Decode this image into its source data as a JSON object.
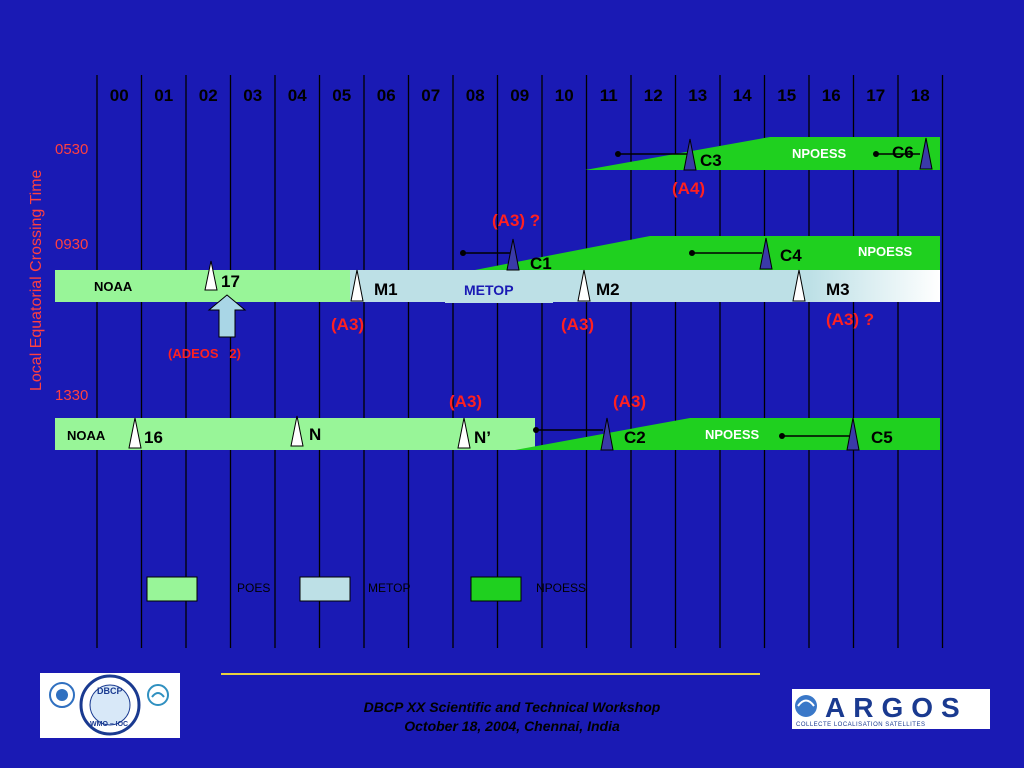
{
  "hours": [
    "00",
    "01",
    "02",
    "03",
    "04",
    "05",
    "06",
    "07",
    "08",
    "09",
    "10",
    "11",
    "12",
    "13",
    "14",
    "15",
    "16",
    "17",
    "18"
  ],
  "y_axis_label": "Local Equatorial Crossing Time",
  "rows": {
    "r0530": "0530",
    "r0930": "0930",
    "r1330": "1330"
  },
  "programs": {
    "noaa": "NOAA",
    "metop": "METOP",
    "npoess": "NPOESS"
  },
  "satellites": {
    "c6": "C6",
    "c3": "C3",
    "c1": "C1",
    "c4": "C4",
    "n17": "17",
    "m1": "M1",
    "m2": "M2",
    "m3": "M3",
    "n16": "16",
    "n": "N",
    "nprime": "N’",
    "c2": "C2",
    "c5": "C5"
  },
  "annotations": {
    "a4": "(A4)",
    "a3q_top": "(A3) ?",
    "a3_m1": "(A3)",
    "a3_m2": "(A3)",
    "a3q_m3": "(A3) ?",
    "adeos": "(ADEOS   2)",
    "a3_nprime": "(A3)",
    "a3_c2": "(A3)"
  },
  "legend": {
    "poes": "POES",
    "metop": "METOP",
    "npoess": "NPOESS"
  },
  "footer": {
    "line1": "DBCP XX Scientific and Technical Workshop",
    "line2": "October 18, 2004, Chennai, India"
  },
  "logos": {
    "dbcp": "DBCP",
    "wmo_ioc": "WMO – IOC",
    "argos": "ARGOS",
    "argos_tagline": "COLLECTE LOCALISATION SATELLITES"
  },
  "colors": {
    "background": "#1a1ab4",
    "poes": "#98f598",
    "metop": "#bde0e6",
    "npoess": "#1fd01f",
    "annotation": "#ff2020"
  }
}
